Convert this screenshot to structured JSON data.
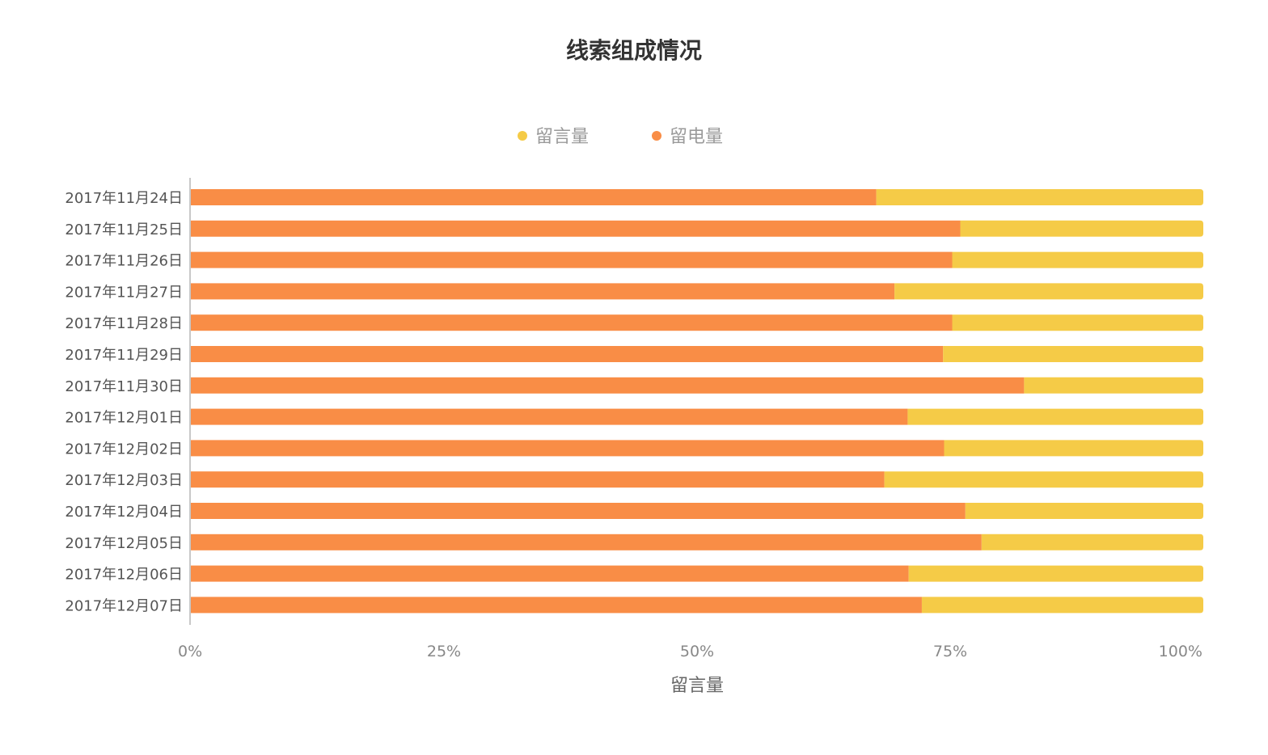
{
  "chart_data": {
    "type": "bar",
    "orientation": "horizontal",
    "stacked": "percent",
    "title": "线索组成情况",
    "xlabel": "留言量",
    "ylabel": "",
    "xlim": [
      0,
      100
    ],
    "x_ticks": [
      "0%",
      "25%",
      "50%",
      "75%",
      "100%"
    ],
    "legend_position": "top-center",
    "grid": false,
    "categories": [
      "2017年11月24日",
      "2017年11月25日",
      "2017年11月26日",
      "2017年11月27日",
      "2017年11月28日",
      "2017年11月29日",
      "2017年11月30日",
      "2017年12月01日",
      "2017年12月02日",
      "2017年12月03日",
      "2017年12月04日",
      "2017年12月05日",
      "2017年12月06日",
      "2017年12月07日"
    ],
    "series": [
      {
        "name": "留电量",
        "color": "#f98d46",
        "values": [
          67.7,
          76.0,
          75.2,
          69.5,
          75.2,
          74.3,
          82.3,
          70.8,
          74.4,
          68.5,
          76.5,
          78.1,
          70.9,
          72.2
        ]
      },
      {
        "name": "留言量",
        "color": "#f5cb47",
        "values": [
          32.3,
          24.0,
          24.8,
          30.5,
          24.8,
          25.7,
          17.7,
          29.2,
          25.6,
          31.5,
          23.5,
          21.9,
          29.1,
          27.8
        ]
      }
    ],
    "legend_order": [
      "留言量",
      "留电量"
    ]
  }
}
